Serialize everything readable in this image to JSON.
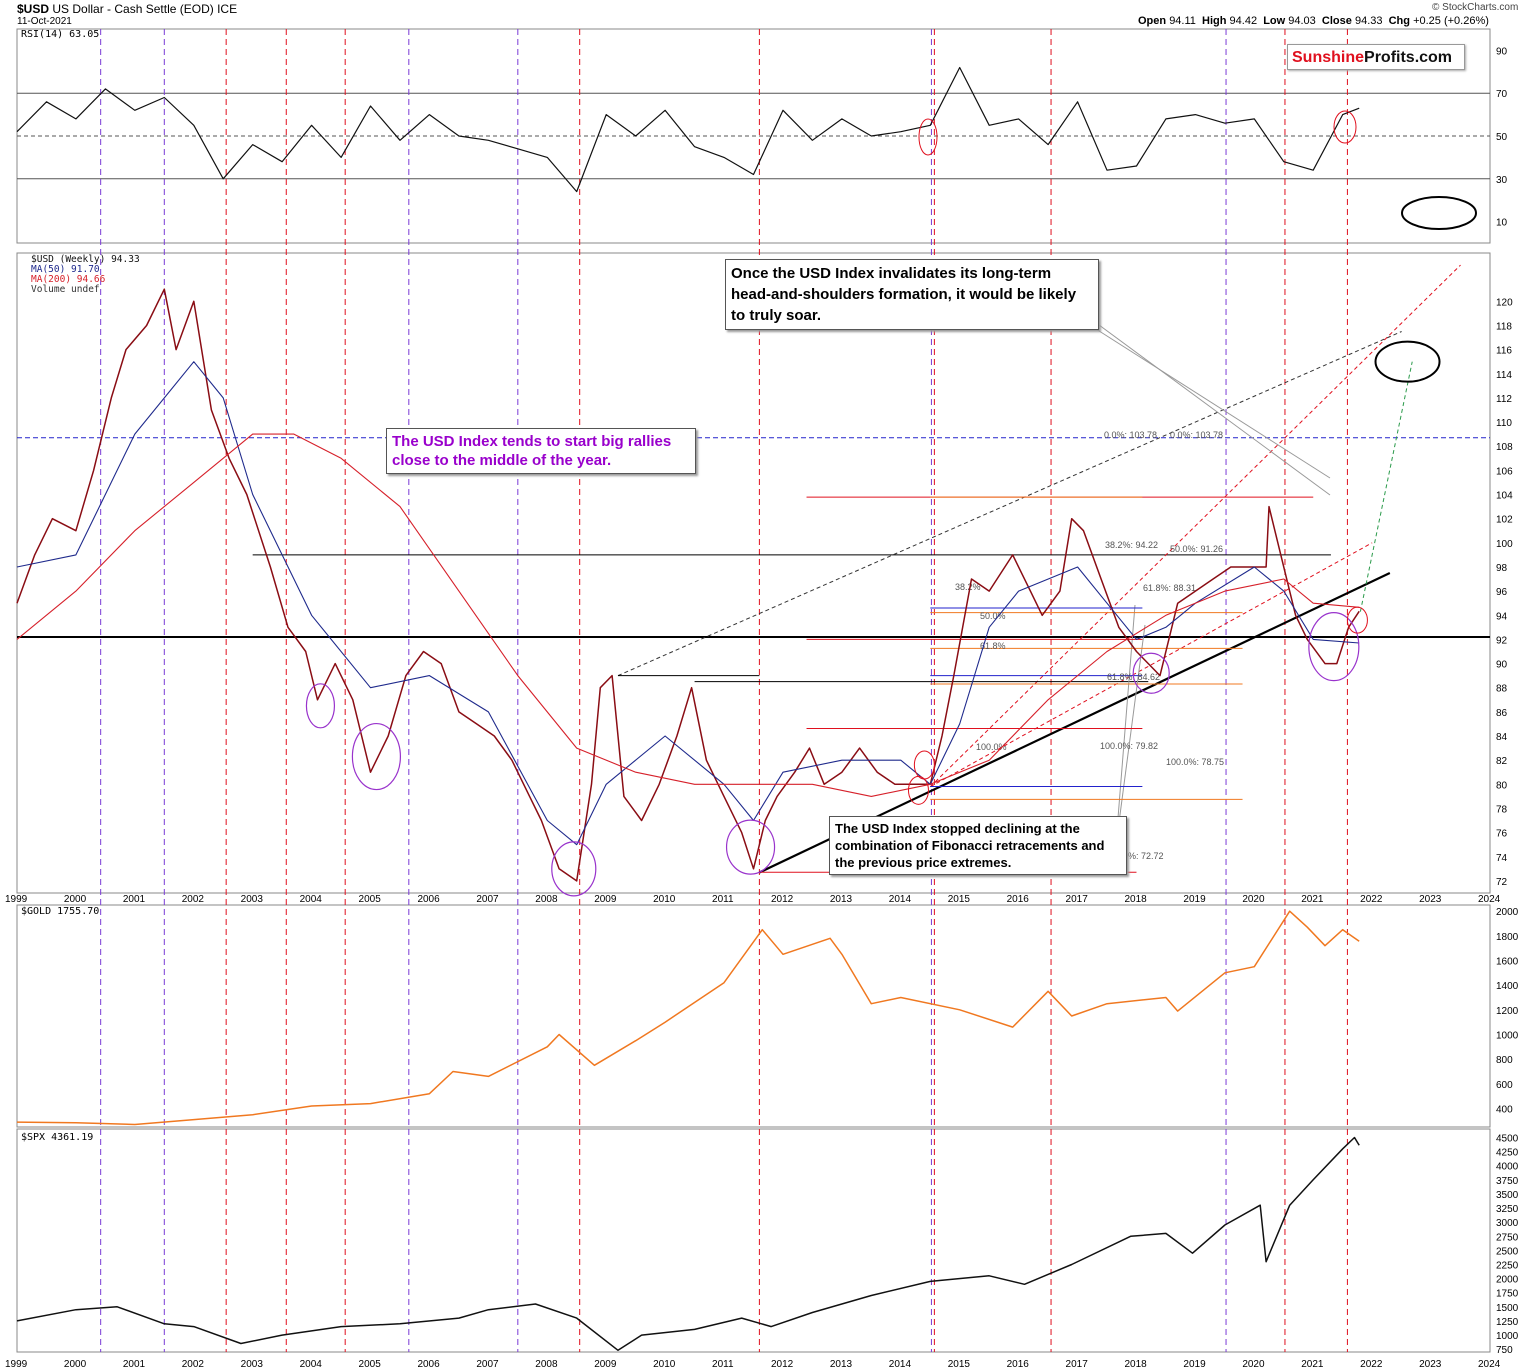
{
  "header": {
    "symbol": "$USD",
    "name": "US Dollar - Cash Settle (EOD)",
    "exchange": "ICE",
    "date": "11-Oct-2021",
    "copyright": "© StockCharts.com",
    "ohlc": {
      "open_label": "Open",
      "open": "94.11",
      "high_label": "High",
      "high": "94.42",
      "low_label": "Low",
      "low": "94.03",
      "close_label": "Close",
      "close": "94.33",
      "chg_label": "Chg",
      "chg": "+0.25 (+0.26%)"
    }
  },
  "logo": {
    "part1": "Sunshine",
    "part2": "Profits.com",
    "color1": "#e0101e",
    "color2": "#111111"
  },
  "colors": {
    "event_line": "#e0101e",
    "blue_line": "#2222cc",
    "ma50": "#1f2a8c",
    "ma200": "#d6202a",
    "gold": "#f07820",
    "spx": "#111111",
    "ellipse": "#9933cc",
    "rsi_fill_high": "#4a8a4a",
    "rsi_fill_low": "#b05a5a"
  },
  "annotations": {
    "left_box": "The USD Index tends to start big rallies close to the middle of the year.",
    "top_box": "Once the USD Index invalidates its long-term head-and-shoulders formation, it would be likely to truly soar.",
    "bottom_box": "The USD Index stopped declining at the combination of Fibonacci retracements and the previous price extremes."
  },
  "chart_data": [
    {
      "type": "line",
      "panel": "rsi",
      "title": "RSI(14) 63.05",
      "ylim": [
        0,
        100
      ],
      "y_ticks": [
        10,
        30,
        50,
        70,
        90
      ],
      "reference_lines": [
        30,
        50,
        70
      ],
      "x": [
        1999.0,
        1999.5,
        2000.0,
        2000.5,
        2001.0,
        2001.5,
        2002.0,
        2002.5,
        2003.0,
        2003.5,
        2004.0,
        2004.5,
        2005.0,
        2005.5,
        2006.0,
        2006.5,
        2007.0,
        2007.5,
        2008.0,
        2008.5,
        2009.0,
        2009.5,
        2010.0,
        2010.5,
        2011.0,
        2011.5,
        2012.0,
        2012.5,
        2013.0,
        2013.5,
        2014.0,
        2014.5,
        2015.0,
        2015.5,
        2016.0,
        2016.5,
        2017.0,
        2017.5,
        2018.0,
        2018.5,
        2019.0,
        2019.5,
        2020.0,
        2020.5,
        2021.0,
        2021.5,
        2021.78
      ],
      "values": [
        52,
        66,
        58,
        72,
        62,
        68,
        55,
        30,
        46,
        38,
        55,
        40,
        64,
        48,
        60,
        50,
        48,
        44,
        40,
        24,
        60,
        50,
        62,
        45,
        40,
        32,
        62,
        48,
        58,
        50,
        52,
        55,
        82,
        55,
        58,
        46,
        66,
        34,
        36,
        58,
        60,
        56,
        58,
        38,
        34,
        60,
        63
      ]
    },
    {
      "type": "line",
      "panel": "usd",
      "title": "$USD (Weekly) 94.33",
      "legend": [
        "$USD (Weekly) 94.33",
        "MA(50) 91.70",
        "MA(200) 94.66",
        "Volume undef"
      ],
      "ylim": [
        71,
        124
      ],
      "y_ticks": [
        72,
        74,
        76,
        78,
        80,
        82,
        84,
        86,
        88,
        90,
        92,
        94,
        96,
        98,
        100,
        102,
        104,
        106,
        108,
        110,
        112,
        114,
        116,
        118,
        120
      ],
      "x_ticks": [
        "1999",
        "2000",
        "2001",
        "2002",
        "2003",
        "2004",
        "2005",
        "2006",
        "2007",
        "2008",
        "2009",
        "2010",
        "2011",
        "2012",
        "2013",
        "2014",
        "2015",
        "2016",
        "2017",
        "2018",
        "2019",
        "2020",
        "2021",
        "2022",
        "2023",
        "2024"
      ],
      "series": [
        {
          "name": "$USD (Weekly) 94.33",
          "x": [
            1999.0,
            1999.3,
            1999.6,
            2000.0,
            2000.3,
            2000.6,
            2000.85,
            2001.2,
            2001.5,
            2001.7,
            2002.0,
            2002.3,
            2002.6,
            2002.9,
            2003.3,
            2003.6,
            2003.9,
            2004.1,
            2004.4,
            2004.7,
            2005.0,
            2005.3,
            2005.6,
            2005.9,
            2006.2,
            2006.5,
            2006.8,
            2007.1,
            2007.4,
            2007.7,
            2007.9,
            2008.2,
            2008.5,
            2008.75,
            2008.9,
            2009.1,
            2009.3,
            2009.6,
            2009.9,
            2010.2,
            2010.45,
            2010.7,
            2011.0,
            2011.3,
            2011.5,
            2011.7,
            2011.9,
            2012.2,
            2012.45,
            2012.7,
            2013.0,
            2013.3,
            2013.6,
            2013.9,
            2014.2,
            2014.5,
            2014.7,
            2014.9,
            2015.2,
            2015.5,
            2015.9,
            2016.2,
            2016.4,
            2016.7,
            2016.9,
            2017.1,
            2017.4,
            2017.7,
            2018.0,
            2018.2,
            2018.4,
            2018.7,
            2019.0,
            2019.3,
            2019.6,
            2019.9,
            2020.2,
            2020.25,
            2020.45,
            2020.7,
            2020.9,
            2021.2,
            2021.4,
            2021.6,
            2021.78
          ],
          "values": [
            95,
            99,
            102,
            101,
            106,
            112,
            116,
            118,
            121,
            116,
            120,
            111,
            107,
            104,
            98,
            93,
            91,
            87,
            90,
            87,
            81,
            84,
            89,
            91,
            90,
            86,
            85,
            84,
            82,
            79,
            77,
            73,
            72,
            80,
            88,
            89,
            79,
            77,
            80,
            84,
            88,
            82,
            79,
            76,
            73,
            77,
            79,
            81,
            83,
            80,
            81,
            83,
            81,
            80,
            80,
            80,
            84,
            89,
            97,
            96,
            99,
            96,
            94,
            96,
            102,
            101,
            97,
            93,
            91,
            90,
            89,
            95,
            96,
            97,
            98,
            98,
            98,
            103,
            99,
            94,
            92,
            90,
            90,
            93,
            94.33
          ]
        },
        {
          "name": "MA(50) 91.70",
          "x": [
            1999.0,
            2000.0,
            2001.0,
            2002.0,
            2002.5,
            2003.0,
            2004.0,
            2005.0,
            2006.0,
            2007.0,
            2008.0,
            2008.5,
            2009.0,
            2010.0,
            2011.0,
            2011.5,
            2012.0,
            2013.0,
            2014.0,
            2014.5,
            2015.0,
            2015.5,
            2016.0,
            2017.0,
            2017.5,
            2018.0,
            2018.5,
            2019.0,
            2020.0,
            2020.5,
            2021.0,
            2021.78
          ],
          "values": [
            98,
            99,
            109,
            115,
            112,
            104,
            94,
            88,
            89,
            86,
            77,
            75,
            80,
            84,
            80,
            77,
            81,
            82,
            82,
            80,
            85,
            93,
            96,
            98,
            95,
            92,
            93,
            95,
            98,
            96,
            92,
            91.7
          ]
        },
        {
          "name": "MA(200) 94.66",
          "x": [
            1999.0,
            2000.0,
            2001.0,
            2002.0,
            2003.0,
            2003.7,
            2004.5,
            2005.5,
            2006.5,
            2007.5,
            2008.5,
            2009.5,
            2010.5,
            2011.5,
            2012.5,
            2013.5,
            2014.5,
            2015.5,
            2016.5,
            2017.5,
            2018.5,
            2019.5,
            2020.5,
            2021.0,
            2021.78
          ],
          "values": [
            92,
            96,
            101,
            105,
            109,
            109,
            107,
            103,
            96,
            89,
            83,
            81,
            80,
            80,
            80,
            79,
            80,
            82,
            87,
            91,
            94,
            96,
            97,
            95,
            94.66
          ]
        }
      ],
      "horizontal_levels": [
        {
          "value": 108.7,
          "style": "dashed",
          "color": "#2222cc"
        },
        {
          "value": 92.2,
          "style": "solid",
          "color": "#000000"
        },
        {
          "value": 99.0,
          "style": "solid",
          "color": "#000000"
        }
      ],
      "fibonacci_labels": [
        "0.0%: 103.78",
        "0.0%: 103.78",
        "38.2%: 94.22",
        "50.0%: 91.26",
        "61.8%: 88.31",
        "61.8%: 84.62",
        "100.0%: 79.82",
        "100.0%: 78.75",
        "38.2%",
        "50.0%",
        "61.8%",
        "100.0%",
        "0%: 72.72"
      ]
    },
    {
      "type": "line",
      "panel": "gold",
      "title": "$GOLD 1755.70",
      "ylim": [
        250,
        2050
      ],
      "y_ticks": [
        400,
        600,
        800,
        1000,
        1200,
        1400,
        1600,
        1800,
        2000
      ],
      "series": [
        {
          "name": "$GOLD 1755.70",
          "x": [
            1999.0,
            2000.0,
            2001.0,
            2002.0,
            2003.0,
            2004.0,
            2005.0,
            2006.0,
            2006.4,
            2007.0,
            2008.0,
            2008.2,
            2008.8,
            2009.5,
            2010.0,
            2011.0,
            2011.65,
            2012.0,
            2012.8,
            2013.0,
            2013.5,
            2014.0,
            2015.0,
            2015.9,
            2016.5,
            2016.9,
            2017.5,
            2018.5,
            2018.7,
            2019.5,
            2020.0,
            2020.6,
            2020.9,
            2021.2,
            2021.5,
            2021.78
          ],
          "values": [
            290,
            285,
            270,
            310,
            350,
            420,
            440,
            520,
            700,
            660,
            900,
            1000,
            750,
            950,
            1100,
            1420,
            1850,
            1650,
            1780,
            1650,
            1250,
            1300,
            1200,
            1060,
            1350,
            1150,
            1250,
            1300,
            1190,
            1500,
            1550,
            2000,
            1870,
            1720,
            1850,
            1755.7
          ]
        }
      ]
    },
    {
      "type": "line",
      "panel": "spx",
      "title": "$SPX 4361.19",
      "ylim": [
        700,
        4650
      ],
      "y_ticks": [
        750,
        1000,
        1250,
        1500,
        1750,
        2000,
        2250,
        2500,
        2750,
        3000,
        3250,
        3500,
        3750,
        4000,
        4250,
        4500
      ],
      "series": [
        {
          "name": "$SPX 4361.19",
          "x": [
            1999.0,
            2000.0,
            2000.7,
            2001.5,
            2002.0,
            2002.8,
            2003.5,
            2004.5,
            2005.5,
            2006.5,
            2007.0,
            2007.8,
            2008.5,
            2009.2,
            2009.6,
            2010.5,
            2011.3,
            2011.8,
            2012.5,
            2013.5,
            2014.5,
            2015.5,
            2016.1,
            2016.9,
            2017.9,
            2018.5,
            2018.95,
            2019.5,
            2020.1,
            2020.2,
            2020.6,
            2021.0,
            2021.5,
            2021.7,
            2021.78
          ],
          "values": [
            1250,
            1450,
            1500,
            1200,
            1150,
            850,
            1000,
            1150,
            1200,
            1300,
            1450,
            1550,
            1300,
            730,
            1000,
            1100,
            1300,
            1150,
            1400,
            1700,
            1950,
            2050,
            1900,
            2250,
            2750,
            2800,
            2450,
            2950,
            3300,
            2300,
            3300,
            3750,
            4300,
            4500,
            4361.19
          ]
        }
      ]
    }
  ]
}
